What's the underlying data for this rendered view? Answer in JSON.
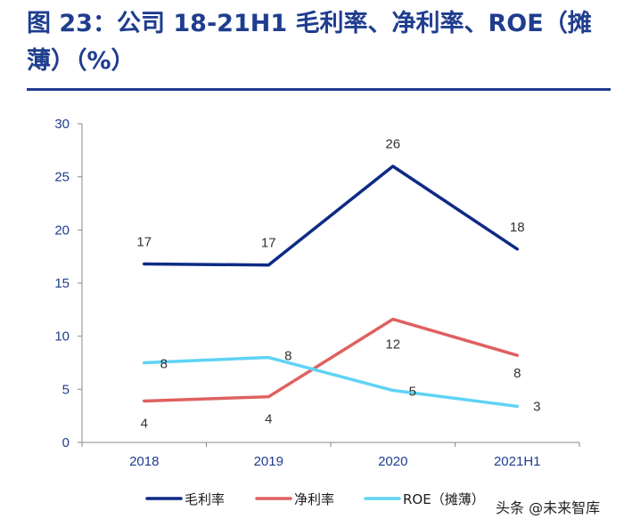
{
  "figure_title": "图 23：公司 18-21H1 毛利率、净利率、ROE（摊薄）（%）",
  "watermark": "头条 @未来智库",
  "colors": {
    "title": "#1f3d8f",
    "axis": "#1f3d8f",
    "gross_margin": "#0d2b85",
    "net_margin": "#e06060",
    "roe": "#5fd3f5"
  },
  "chart_data": {
    "type": "line",
    "title": "图 23：公司 18-21H1 毛利率、净利率、ROE（摊薄）（%）",
    "categories": [
      "2018",
      "2019",
      "2020",
      "2021H1"
    ],
    "ylim": [
      0,
      30
    ],
    "yticks": [
      0,
      5,
      10,
      15,
      20,
      25,
      30
    ],
    "xlabel": "",
    "ylabel": "",
    "legend_position": "bottom",
    "series": [
      {
        "name": "毛利率",
        "values": [
          16.8,
          16.7,
          26.0,
          18.2
        ],
        "labels": [
          "17",
          "17",
          "26",
          "18"
        ]
      },
      {
        "name": "净利率",
        "values": [
          3.9,
          4.3,
          11.6,
          8.2
        ],
        "labels": [
          "4",
          "4",
          "12",
          "8"
        ]
      },
      {
        "name": "ROE（摊薄）",
        "values": [
          7.5,
          8.0,
          4.9,
          3.4
        ],
        "labels": [
          "8",
          "8",
          "5",
          "3"
        ]
      }
    ]
  }
}
